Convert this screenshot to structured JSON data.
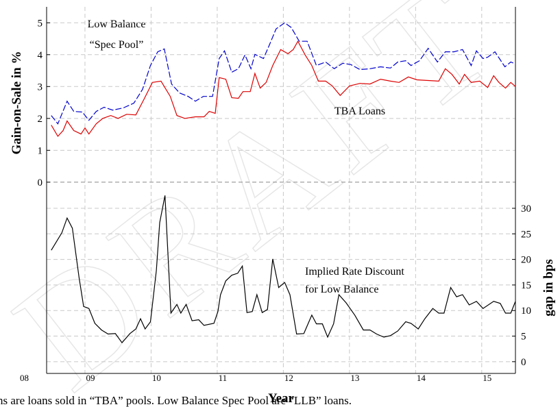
{
  "chart_data": {
    "type": "line",
    "watermark": "DRAFT",
    "ylabel": "Gain-on-Sale in %",
    "y2label": "gap in bps",
    "xlabel": "Year",
    "caption": "ns are loans sold in “TBA” pools. Low Balance Spec Pool are “LLB” loans.",
    "annotations": [
      "Low Balance",
      "“Spec Pool”",
      "TBA Loans",
      "Implied Rate Discount",
      "for Low Balance"
    ],
    "xlim": [
      2008.42,
      2015.51
    ],
    "xticks": [
      {
        "value": 2008,
        "label": "08"
      },
      {
        "value": 2009,
        "label": "09"
      },
      {
        "value": 2010,
        "label": "10"
      },
      {
        "value": 2011,
        "label": "11"
      },
      {
        "value": 2012,
        "label": "12"
      },
      {
        "value": 2013,
        "label": "13"
      },
      {
        "value": 2014,
        "label": "14"
      },
      {
        "value": 2015,
        "label": "15"
      }
    ],
    "ylim": [
      -6,
      5.5
    ],
    "yticks": [
      0,
      1,
      2,
      3,
      4,
      5
    ],
    "y2lim": [
      -2.3,
      69.4
    ],
    "y2ticks": [
      0,
      5,
      10,
      15,
      20,
      25,
      30
    ],
    "grid": true,
    "series": [
      {
        "name": "Low Balance Spec Pool",
        "color": "#0000cc",
        "dashed": true,
        "x": [
          2008.49,
          2008.59,
          2008.73,
          2008.83,
          2008.96,
          2009.06,
          2009.17,
          2009.29,
          2009.42,
          2009.58,
          2009.74,
          2009.87,
          2009.99,
          2010.1,
          2010.2,
          2010.31,
          2010.43,
          2010.56,
          2010.67,
          2010.79,
          2010.93,
          2011.03,
          2011.11,
          2011.22,
          2011.32,
          2011.42,
          2011.51,
          2011.57,
          2011.7,
          2011.79,
          2011.89,
          2012.02,
          2012.12,
          2012.24,
          2012.36,
          2012.5,
          2012.64,
          2012.77,
          2012.9,
          2013.02,
          2013.16,
          2013.31,
          2013.47,
          2013.62,
          2013.73,
          2013.85,
          2013.93,
          2014.06,
          2014.19,
          2014.33,
          2014.45,
          2014.58,
          2014.71,
          2014.84,
          2014.92,
          2015.02,
          2015.09,
          2015.2,
          2015.35,
          2015.44,
          2015.51
        ],
        "values": [
          2.09,
          1.83,
          2.54,
          2.22,
          2.2,
          1.94,
          2.22,
          2.35,
          2.26,
          2.33,
          2.48,
          2.91,
          3.66,
          4.09,
          4.18,
          3.08,
          2.8,
          2.69,
          2.54,
          2.69,
          2.69,
          3.88,
          4.12,
          3.45,
          3.56,
          3.99,
          3.56,
          4.01,
          3.88,
          4.31,
          4.81,
          5.0,
          4.85,
          4.42,
          4.42,
          3.66,
          3.77,
          3.56,
          3.73,
          3.69,
          3.53,
          3.56,
          3.62,
          3.58,
          3.77,
          3.81,
          3.66,
          3.81,
          4.2,
          3.77,
          4.09,
          4.09,
          4.16,
          3.66,
          4.12,
          3.88,
          3.92,
          4.09,
          3.62,
          3.77,
          3.71
        ]
      },
      {
        "name": "TBA Loans",
        "color": "#dd0000",
        "x": [
          2008.49,
          2008.59,
          2008.67,
          2008.73,
          2008.83,
          2008.94,
          2009.0,
          2009.06,
          2009.17,
          2009.27,
          2009.39,
          2009.5,
          2009.63,
          2009.77,
          2009.89,
          2010.02,
          2010.15,
          2010.29,
          2010.39,
          2010.51,
          2010.67,
          2010.8,
          2010.88,
          2010.97,
          2011.03,
          2011.13,
          2011.22,
          2011.32,
          2011.39,
          2011.5,
          2011.57,
          2011.65,
          2011.74,
          2011.84,
          2011.96,
          2012.07,
          2012.15,
          2012.22,
          2012.33,
          2012.43,
          2012.53,
          2012.64,
          2012.74,
          2012.86,
          2013.0,
          2013.16,
          2013.31,
          2013.47,
          2013.62,
          2013.75,
          2013.89,
          2014.02,
          2014.19,
          2014.35,
          2014.45,
          2014.55,
          2014.66,
          2014.74,
          2014.84,
          2014.97,
          2015.09,
          2015.18,
          2015.26,
          2015.36,
          2015.44,
          2015.51
        ],
        "values": [
          1.79,
          1.44,
          1.62,
          1.92,
          1.62,
          1.51,
          1.7,
          1.51,
          1.83,
          2.0,
          2.09,
          2.0,
          2.13,
          2.11,
          2.59,
          3.13,
          3.17,
          2.69,
          2.09,
          2.0,
          2.05,
          2.05,
          2.22,
          2.16,
          3.28,
          3.23,
          2.65,
          2.63,
          2.84,
          2.84,
          3.41,
          2.95,
          3.13,
          3.66,
          4.16,
          4.03,
          4.16,
          4.42,
          3.99,
          3.66,
          3.17,
          3.17,
          3.02,
          2.72,
          3.02,
          3.1,
          3.08,
          3.23,
          3.17,
          3.13,
          3.3,
          3.21,
          3.19,
          3.17,
          3.56,
          3.38,
          3.08,
          3.38,
          3.13,
          3.17,
          2.97,
          3.34,
          3.13,
          2.95,
          3.13,
          3.0
        ]
      },
      {
        "name": "Implied Rate Discount for Low Balance",
        "color": "#000000",
        "axis": "y2",
        "x": [
          2008.49,
          2008.65,
          2008.73,
          2008.81,
          2008.91,
          2008.98,
          2009.06,
          2009.15,
          2009.25,
          2009.35,
          2009.46,
          2009.56,
          2009.68,
          2009.77,
          2009.84,
          2009.91,
          2009.99,
          2010.08,
          2010.13,
          2010.21,
          2010.3,
          2010.39,
          2010.45,
          2010.53,
          2010.62,
          2010.72,
          2010.8,
          2010.95,
          2011.01,
          2011.05,
          2011.13,
          2011.22,
          2011.31,
          2011.38,
          2011.45,
          2011.53,
          2011.6,
          2011.68,
          2011.76,
          2011.84,
          2011.93,
          2012.02,
          2012.1,
          2012.2,
          2012.31,
          2012.43,
          2012.5,
          2012.59,
          2012.67,
          2012.76,
          2012.84,
          2012.95,
          2013.08,
          2013.21,
          2013.31,
          2013.41,
          2013.52,
          2013.62,
          2013.73,
          2013.85,
          2013.93,
          2014.04,
          2014.14,
          2014.26,
          2014.35,
          2014.43,
          2014.53,
          2014.62,
          2014.71,
          2014.81,
          2014.92,
          2015.02,
          2015.18,
          2015.28,
          2015.36,
          2015.44,
          2015.51
        ],
        "values": [
          21.8,
          25.2,
          28.1,
          26.1,
          16.5,
          10.8,
          10.4,
          7.5,
          6.2,
          5.4,
          5.5,
          3.7,
          5.5,
          6.4,
          8.4,
          6.4,
          7.8,
          17.8,
          27.2,
          32.5,
          9.5,
          11.2,
          9.5,
          11.2,
          8.0,
          8.2,
          7.1,
          7.5,
          9.8,
          13.1,
          15.8,
          16.9,
          17.3,
          18.7,
          9.6,
          9.8,
          13.1,
          9.6,
          10.2,
          20.1,
          14.5,
          15.5,
          13.1,
          5.4,
          5.5,
          9.1,
          7.4,
          7.4,
          4.8,
          7.4,
          13.1,
          11.5,
          9.1,
          6.2,
          6.2,
          5.4,
          4.8,
          5.1,
          6.0,
          7.8,
          7.5,
          6.4,
          8.4,
          10.4,
          9.5,
          9.5,
          14.5,
          12.7,
          13.1,
          11.1,
          11.8,
          10.4,
          11.8,
          11.4,
          9.5,
          9.5,
          11.8
        ]
      }
    ]
  }
}
